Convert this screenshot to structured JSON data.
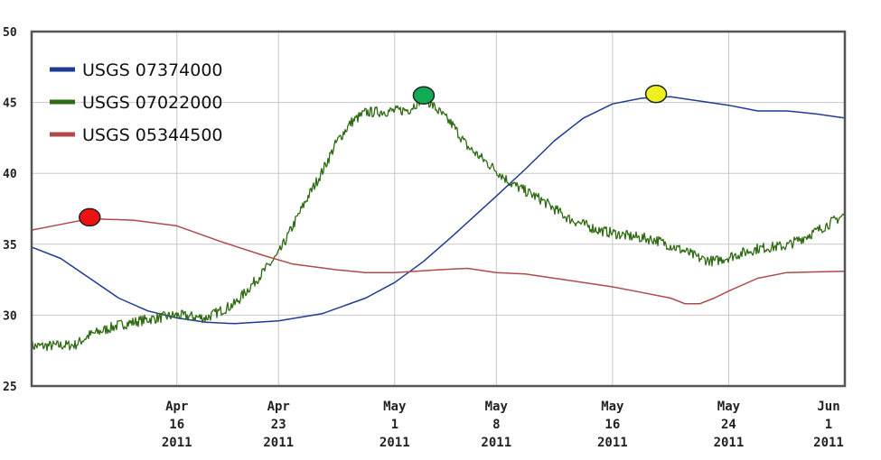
{
  "chart_data": {
    "type": "line",
    "title": "",
    "xlabel": "",
    "ylabel": "",
    "ylim": [
      25,
      50
    ],
    "yticks": [
      25,
      30,
      35,
      40,
      45,
      50
    ],
    "xlim": [
      "2011-04-06",
      "2011-06-01"
    ],
    "grid": true,
    "legend_position": "top-left",
    "x_ticks": [
      {
        "date": "2011-04-16",
        "lines": [
          "Apr",
          "16",
          "2011"
        ]
      },
      {
        "date": "2011-04-23",
        "lines": [
          "Apr",
          "23",
          "2011"
        ]
      },
      {
        "date": "2011-05-01",
        "lines": [
          "May",
          "1",
          "2011"
        ]
      },
      {
        "date": "2011-05-08",
        "lines": [
          "May",
          "8",
          "2011"
        ]
      },
      {
        "date": "2011-05-16",
        "lines": [
          "May",
          "16",
          "2011"
        ]
      },
      {
        "date": "2011-05-24",
        "lines": [
          "May",
          "24",
          "2011"
        ]
      },
      {
        "date": "2011-06-01",
        "lines": [
          "Jun",
          "1",
          "2011"
        ]
      }
    ],
    "series": [
      {
        "name": "USGS 07374000",
        "color": "#1f3a93",
        "noisy": false,
        "points": [
          [
            "2011-04-06",
            34.8
          ],
          [
            "2011-04-08",
            34.0
          ],
          [
            "2011-04-10",
            32.6
          ],
          [
            "2011-04-12",
            31.2
          ],
          [
            "2011-04-14",
            30.3
          ],
          [
            "2011-04-16",
            29.8
          ],
          [
            "2011-04-18",
            29.5
          ],
          [
            "2011-04-20",
            29.4
          ],
          [
            "2011-04-23",
            29.6
          ],
          [
            "2011-04-26",
            30.1
          ],
          [
            "2011-04-29",
            31.2
          ],
          [
            "2011-05-01",
            32.3
          ],
          [
            "2011-05-03",
            33.8
          ],
          [
            "2011-05-05",
            35.6
          ],
          [
            "2011-05-08",
            38.4
          ],
          [
            "2011-05-10",
            40.3
          ],
          [
            "2011-05-12",
            42.3
          ],
          [
            "2011-05-14",
            43.9
          ],
          [
            "2011-05-16",
            44.9
          ],
          [
            "2011-05-18",
            45.3
          ],
          [
            "2011-05-20",
            45.4
          ],
          [
            "2011-05-22",
            45.1
          ],
          [
            "2011-05-24",
            44.8
          ],
          [
            "2011-05-26",
            44.4
          ],
          [
            "2011-05-28",
            44.4
          ],
          [
            "2011-05-30",
            44.2
          ],
          [
            "2011-06-01",
            43.9
          ]
        ]
      },
      {
        "name": "USGS 07022000",
        "color": "#2e6b12",
        "noisy": true,
        "points": [
          [
            "2011-04-06",
            27.8
          ],
          [
            "2011-04-09",
            27.9
          ],
          [
            "2011-04-10",
            28.6
          ],
          [
            "2011-04-12",
            29.3
          ],
          [
            "2011-04-14",
            29.7
          ],
          [
            "2011-04-16",
            30.0
          ],
          [
            "2011-04-18",
            29.8
          ],
          [
            "2011-04-20",
            30.8
          ],
          [
            "2011-04-22",
            33.1
          ],
          [
            "2011-04-23",
            34.3
          ],
          [
            "2011-04-24",
            36.3
          ],
          [
            "2011-04-25",
            38.3
          ],
          [
            "2011-04-26",
            40.1
          ],
          [
            "2011-04-27",
            42.2
          ],
          [
            "2011-04-28",
            43.6
          ],
          [
            "2011-04-29",
            44.3
          ],
          [
            "2011-05-01",
            44.4
          ],
          [
            "2011-05-02",
            44.5
          ],
          [
            "2011-05-03",
            45.4
          ],
          [
            "2011-05-04",
            44.4
          ],
          [
            "2011-05-05",
            43.4
          ],
          [
            "2011-05-06",
            41.9
          ],
          [
            "2011-05-08",
            40.2
          ],
          [
            "2011-05-09",
            39.3
          ],
          [
            "2011-05-11",
            38.2
          ],
          [
            "2011-05-13",
            36.8
          ],
          [
            "2011-05-15",
            36.0
          ],
          [
            "2011-05-17",
            35.6
          ],
          [
            "2011-05-19",
            35.3
          ],
          [
            "2011-05-21",
            34.5
          ],
          [
            "2011-05-22",
            34.0
          ],
          [
            "2011-05-23",
            33.8
          ],
          [
            "2011-05-24",
            34.1
          ],
          [
            "2011-05-26",
            34.7
          ],
          [
            "2011-05-28",
            34.9
          ],
          [
            "2011-05-30",
            35.9
          ],
          [
            "2011-06-01",
            37.1
          ]
        ]
      },
      {
        "name": "USGS 05344500",
        "color": "#b04a4a",
        "noisy": false,
        "points": [
          [
            "2011-04-06",
            36.0
          ],
          [
            "2011-04-08",
            36.4
          ],
          [
            "2011-04-10",
            36.8
          ],
          [
            "2011-04-13",
            36.7
          ],
          [
            "2011-04-16",
            36.3
          ],
          [
            "2011-04-19",
            35.2
          ],
          [
            "2011-04-22",
            34.2
          ],
          [
            "2011-04-24",
            33.6
          ],
          [
            "2011-04-27",
            33.2
          ],
          [
            "2011-04-29",
            33.0
          ],
          [
            "2011-05-01",
            33.0
          ],
          [
            "2011-05-04",
            33.2
          ],
          [
            "2011-05-06",
            33.3
          ],
          [
            "2011-05-08",
            33.0
          ],
          [
            "2011-05-10",
            32.9
          ],
          [
            "2011-05-12",
            32.6
          ],
          [
            "2011-05-14",
            32.3
          ],
          [
            "2011-05-16",
            32.0
          ],
          [
            "2011-05-18",
            31.6
          ],
          [
            "2011-05-20",
            31.2
          ],
          [
            "2011-05-21",
            30.8
          ],
          [
            "2011-05-22",
            30.8
          ],
          [
            "2011-05-23",
            31.2
          ],
          [
            "2011-05-24",
            31.7
          ],
          [
            "2011-05-26",
            32.6
          ],
          [
            "2011-05-28",
            33.0
          ],
          [
            "2011-06-01",
            33.1
          ]
        ]
      }
    ],
    "markers": [
      {
        "color": "#ee1111",
        "date": "2011-04-10",
        "value": 36.9
      },
      {
        "color": "#11aa55",
        "date": "2011-05-03",
        "value": 45.5
      },
      {
        "color": "#f0f020",
        "date": "2011-05-19",
        "value": 45.6
      }
    ]
  }
}
